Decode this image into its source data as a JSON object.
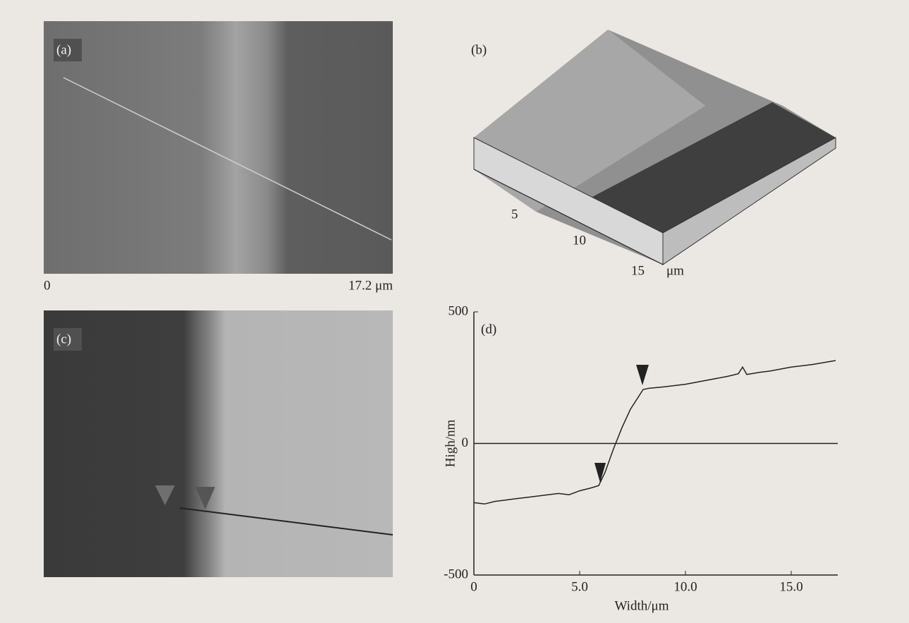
{
  "panels": {
    "a": {
      "label": "(a)",
      "scale_start": "0",
      "scale_end": "17.2 μm"
    },
    "b": {
      "label": "(b)",
      "axis_ticks": [
        "5",
        "10",
        "15"
      ],
      "axis_unit": "μm"
    },
    "c": {
      "label": "(c)"
    }
  },
  "chart_data": {
    "type": "line",
    "label": "(d)",
    "x_label": "Width/μm",
    "y_label": "High/nm",
    "x": [
      0,
      0.5,
      1,
      1.5,
      2,
      2.5,
      3,
      3.5,
      4,
      4.5,
      5,
      5.5,
      5.9,
      6.2,
      6.6,
      7.0,
      7.4,
      7.8,
      8.0,
      8.3,
      9,
      10,
      11,
      12,
      12.5,
      12.7,
      12.9,
      13.5,
      14,
      15,
      16,
      17.1
    ],
    "values": [
      -225,
      -230,
      -220,
      -215,
      -210,
      -205,
      -200,
      -195,
      -190,
      -195,
      -180,
      -170,
      -160,
      -110,
      -20,
      60,
      130,
      180,
      205,
      210,
      215,
      225,
      240,
      255,
      265,
      290,
      262,
      270,
      275,
      290,
      300,
      315
    ],
    "color": "#222222",
    "xlim": [
      0,
      17.2
    ],
    "ylim": [
      -500,
      500
    ],
    "xticks": [
      0,
      {
        "value": 5,
        "label": "5.0"
      },
      {
        "value": 10,
        "label": "10.0"
      },
      {
        "value": 15,
        "label": "15.0"
      }
    ],
    "yticks": [
      -500,
      0,
      500
    ],
    "zero_line": true
  }
}
